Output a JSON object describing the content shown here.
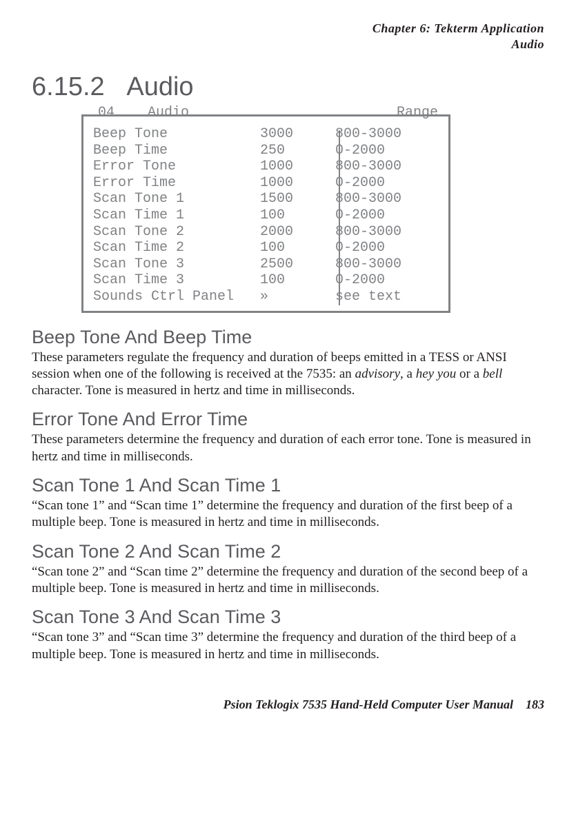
{
  "header": {
    "chapter_line": "Chapter  6:  Tekterm Application",
    "section_word": "Audio"
  },
  "section": {
    "number": "6.15.2",
    "title": "Audio"
  },
  "legend": {
    "left_num": "04",
    "left_word": "Audio",
    "right": "Range"
  },
  "rows": [
    {
      "label": "Beep Tone",
      "value": "3000",
      "range": "800-3000"
    },
    {
      "label": "Beep Time",
      "value": "250",
      "range": "0-2000"
    },
    {
      "label": "Error Tone",
      "value": "1000",
      "range": "800-3000"
    },
    {
      "label": "Error Time",
      "value": "1000",
      "range": "0-2000"
    },
    {
      "label": "Scan Tone 1",
      "value": "1500",
      "range": "800-3000"
    },
    {
      "label": "Scan Time 1",
      "value": "100",
      "range": "0-2000"
    },
    {
      "label": "Scan Tone 2",
      "value": "2000",
      "range": "800-3000"
    },
    {
      "label": "Scan Time 2",
      "value": "100",
      "range": "0-2000"
    },
    {
      "label": "Scan Tone 3",
      "value": "2500",
      "range": "800-3000"
    },
    {
      "label": "Scan Time 3",
      "value": "100",
      "range": "0-2000"
    },
    {
      "label": "Sounds Ctrl Panel",
      "value": "»",
      "range": "see text"
    }
  ],
  "subs": {
    "beep": {
      "title": "Beep Tone And Beep Time",
      "p_pre": "These parameters regulate the frequency and duration of beeps emitted in a TESS or ANSI session when one of the following is received at the 7535: an ",
      "em1": "advisory",
      "mid1": ", a ",
      "em2": "hey you",
      "mid2": " or a ",
      "em3": "bell",
      "post": " character. Tone is measured in hertz and time in milliseconds."
    },
    "error": {
      "title": "Error Tone And Error Time",
      "p": "These parameters determine the frequency and duration of each error tone. Tone is measured in hertz and time in milliseconds."
    },
    "s1": {
      "title": "Scan Tone 1 And Scan Time 1",
      "p": "“Scan tone 1” and “Scan time 1” determine the frequency and duration of the first beep of a multiple beep. Tone is measured in hertz and time in milliseconds."
    },
    "s2": {
      "title": "Scan Tone 2 And Scan Time 2",
      "p": "“Scan tone 2” and “Scan time 2” determine the frequency and duration of the second beep of a multiple beep. Tone is measured in hertz and time in milliseconds."
    },
    "s3": {
      "title": "Scan Tone 3 And Scan Time 3",
      "p": "“Scan tone 3” and “Scan time 3” determine the frequency and duration of the third beep of a multiple beep. Tone is measured in hertz and time in milliseconds."
    }
  },
  "footer": {
    "manual": "Psion Teklogix 7535 Hand-Held Computer User Manual",
    "page": "183"
  },
  "colors": {
    "text": "#231f20",
    "grey": "#808285",
    "heading": "#5a5a5f",
    "bg": "#ffffff"
  }
}
